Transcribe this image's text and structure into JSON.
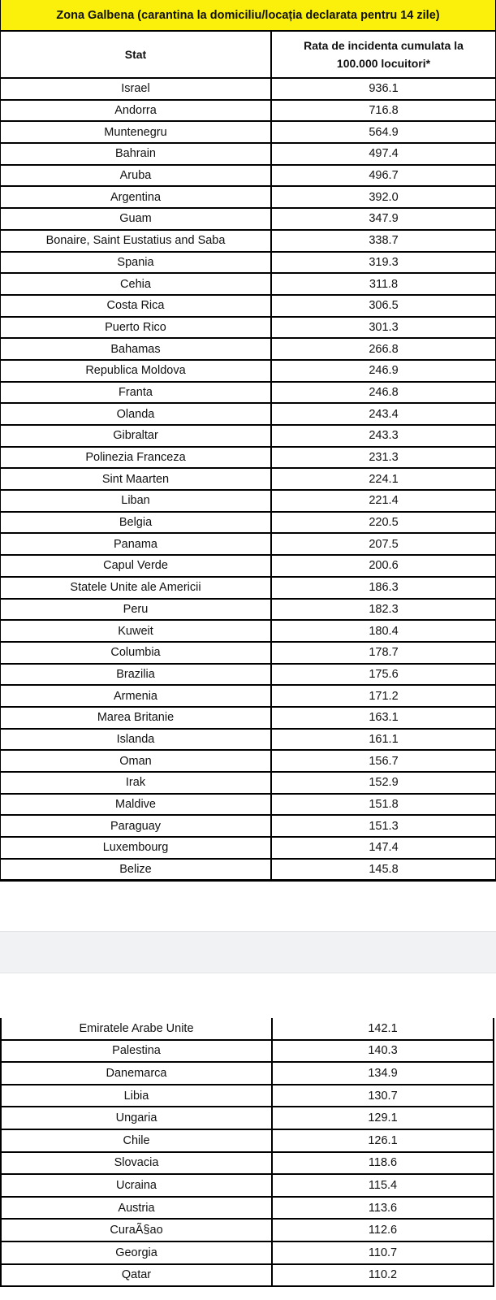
{
  "title": "Zona Galbena (carantina la domiciliu/locația declarata pentru 14 zile)",
  "columns": {
    "stat": "Stat",
    "rate_line1": "Rata de incidenta cumulata la",
    "rate_line2": "100.000 locuitori*"
  },
  "colors": {
    "title_background": "#fbf00c",
    "separator": "#f1f2f4"
  },
  "table1": [
    [
      "Israel",
      "936.1"
    ],
    [
      "Andorra",
      "716.8"
    ],
    [
      "Muntenegru",
      "564.9"
    ],
    [
      "Bahrain",
      "497.4"
    ],
    [
      "Aruba",
      "496.7"
    ],
    [
      "Argentina",
      "392.0"
    ],
    [
      "Guam",
      "347.9"
    ],
    [
      "Bonaire, Saint Eustatius and Saba",
      "338.7"
    ],
    [
      "Spania",
      "319.3"
    ],
    [
      "Cehia",
      "311.8"
    ],
    [
      "Costa Rica",
      "306.5"
    ],
    [
      "Puerto Rico",
      "301.3"
    ],
    [
      "Bahamas",
      "266.8"
    ],
    [
      "Republica Moldova",
      "246.9"
    ],
    [
      "Franta",
      "246.8"
    ],
    [
      "Olanda",
      "243.4"
    ],
    [
      "Gibraltar",
      "243.3"
    ],
    [
      "Polinezia Franceza",
      "231.3"
    ],
    [
      "Sint Maarten",
      "224.1"
    ],
    [
      "Liban",
      "221.4"
    ],
    [
      "Belgia",
      "220.5"
    ],
    [
      "Panama",
      "207.5"
    ],
    [
      "Capul Verde",
      "200.6"
    ],
    [
      "Statele Unite ale Americii",
      "186.3"
    ],
    [
      "Peru",
      "182.3"
    ],
    [
      "Kuweit",
      "180.4"
    ],
    [
      "Columbia",
      "178.7"
    ],
    [
      "Brazilia",
      "175.6"
    ],
    [
      "Armenia",
      "171.2"
    ],
    [
      "Marea Britanie",
      "163.1"
    ],
    [
      "Islanda",
      "161.1"
    ],
    [
      "Oman",
      "156.7"
    ],
    [
      "Irak",
      "152.9"
    ],
    [
      "Maldive",
      "151.8"
    ],
    [
      "Paraguay",
      "151.3"
    ],
    [
      "Luxembourg",
      "147.4"
    ],
    [
      "Belize",
      "145.8"
    ]
  ],
  "table2": [
    [
      "Emiratele Arabe Unite",
      "142.1"
    ],
    [
      "Palestina",
      "140.3"
    ],
    [
      "Danemarca",
      "134.9"
    ],
    [
      "Libia",
      "130.7"
    ],
    [
      "Ungaria",
      "129.1"
    ],
    [
      "Chile",
      "126.1"
    ],
    [
      "Slovacia",
      "118.6"
    ],
    [
      "Ucraina",
      "115.4"
    ],
    [
      "Austria",
      "113.6"
    ],
    [
      "CuraÃ§ao",
      "112.6"
    ],
    [
      "Georgia",
      "110.7"
    ],
    [
      "Qatar",
      "110.2"
    ]
  ]
}
